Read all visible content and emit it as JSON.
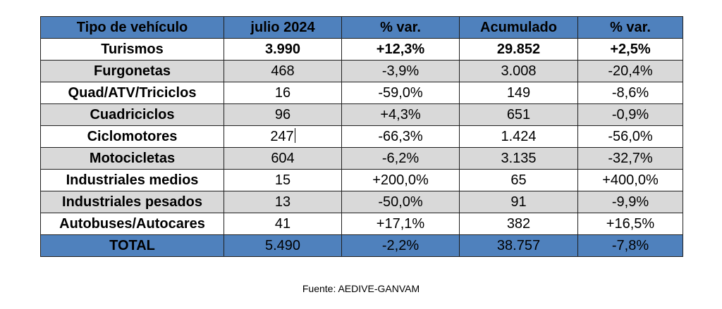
{
  "colors": {
    "header_bg": "#4f81bd",
    "total_bg": "#4f81bd",
    "shaded_row_bg": "#d9d9d9",
    "plain_row_bg": "#ffffff"
  },
  "table": {
    "headers": [
      "Tipo de vehículo",
      "julio 2024",
      "% var.",
      "Acumulado",
      "% var."
    ],
    "rows": [
      {
        "cells": [
          "Turismos",
          "3.990",
          "+12,3%",
          "29.852",
          "+2,5%"
        ],
        "style": "bold"
      },
      {
        "cells": [
          "Furgonetas",
          "468",
          "-3,9%",
          "3.008",
          "-20,4%"
        ],
        "style": "shaded"
      },
      {
        "cells": [
          "Quad/ATV/Triciclos",
          "16",
          "-59,0%",
          "149",
          "-8,6%"
        ],
        "style": "plain"
      },
      {
        "cells": [
          "Cuadriciclos",
          "96",
          "+4,3%",
          "651",
          "-0,9%"
        ],
        "style": "shaded"
      },
      {
        "cells": [
          "Ciclomotores",
          "247",
          "-66,3%",
          "1.424",
          "-56,0%"
        ],
        "style": "plain"
      },
      {
        "cells": [
          "Motocicletas",
          "604",
          "-6,2%",
          "3.135",
          "-32,7%"
        ],
        "style": "shaded"
      },
      {
        "cells": [
          "Industriales medios",
          "15",
          "+200,0%",
          "65",
          "+400,0%"
        ],
        "style": "plain"
      },
      {
        "cells": [
          "Industriales pesados",
          "13",
          "-50,0%",
          "91",
          "-9,9%"
        ],
        "style": "shaded"
      },
      {
        "cells": [
          "Autobuses/Autocares",
          "41",
          "+17,1%",
          "382",
          "+16,5%"
        ],
        "style": "plain"
      },
      {
        "cells": [
          "TOTAL",
          "5.490",
          "-2,2%",
          "38.757",
          "-7,8%"
        ],
        "style": "total"
      }
    ]
  },
  "source": "Fuente: AEDIVE-GANVAM"
}
